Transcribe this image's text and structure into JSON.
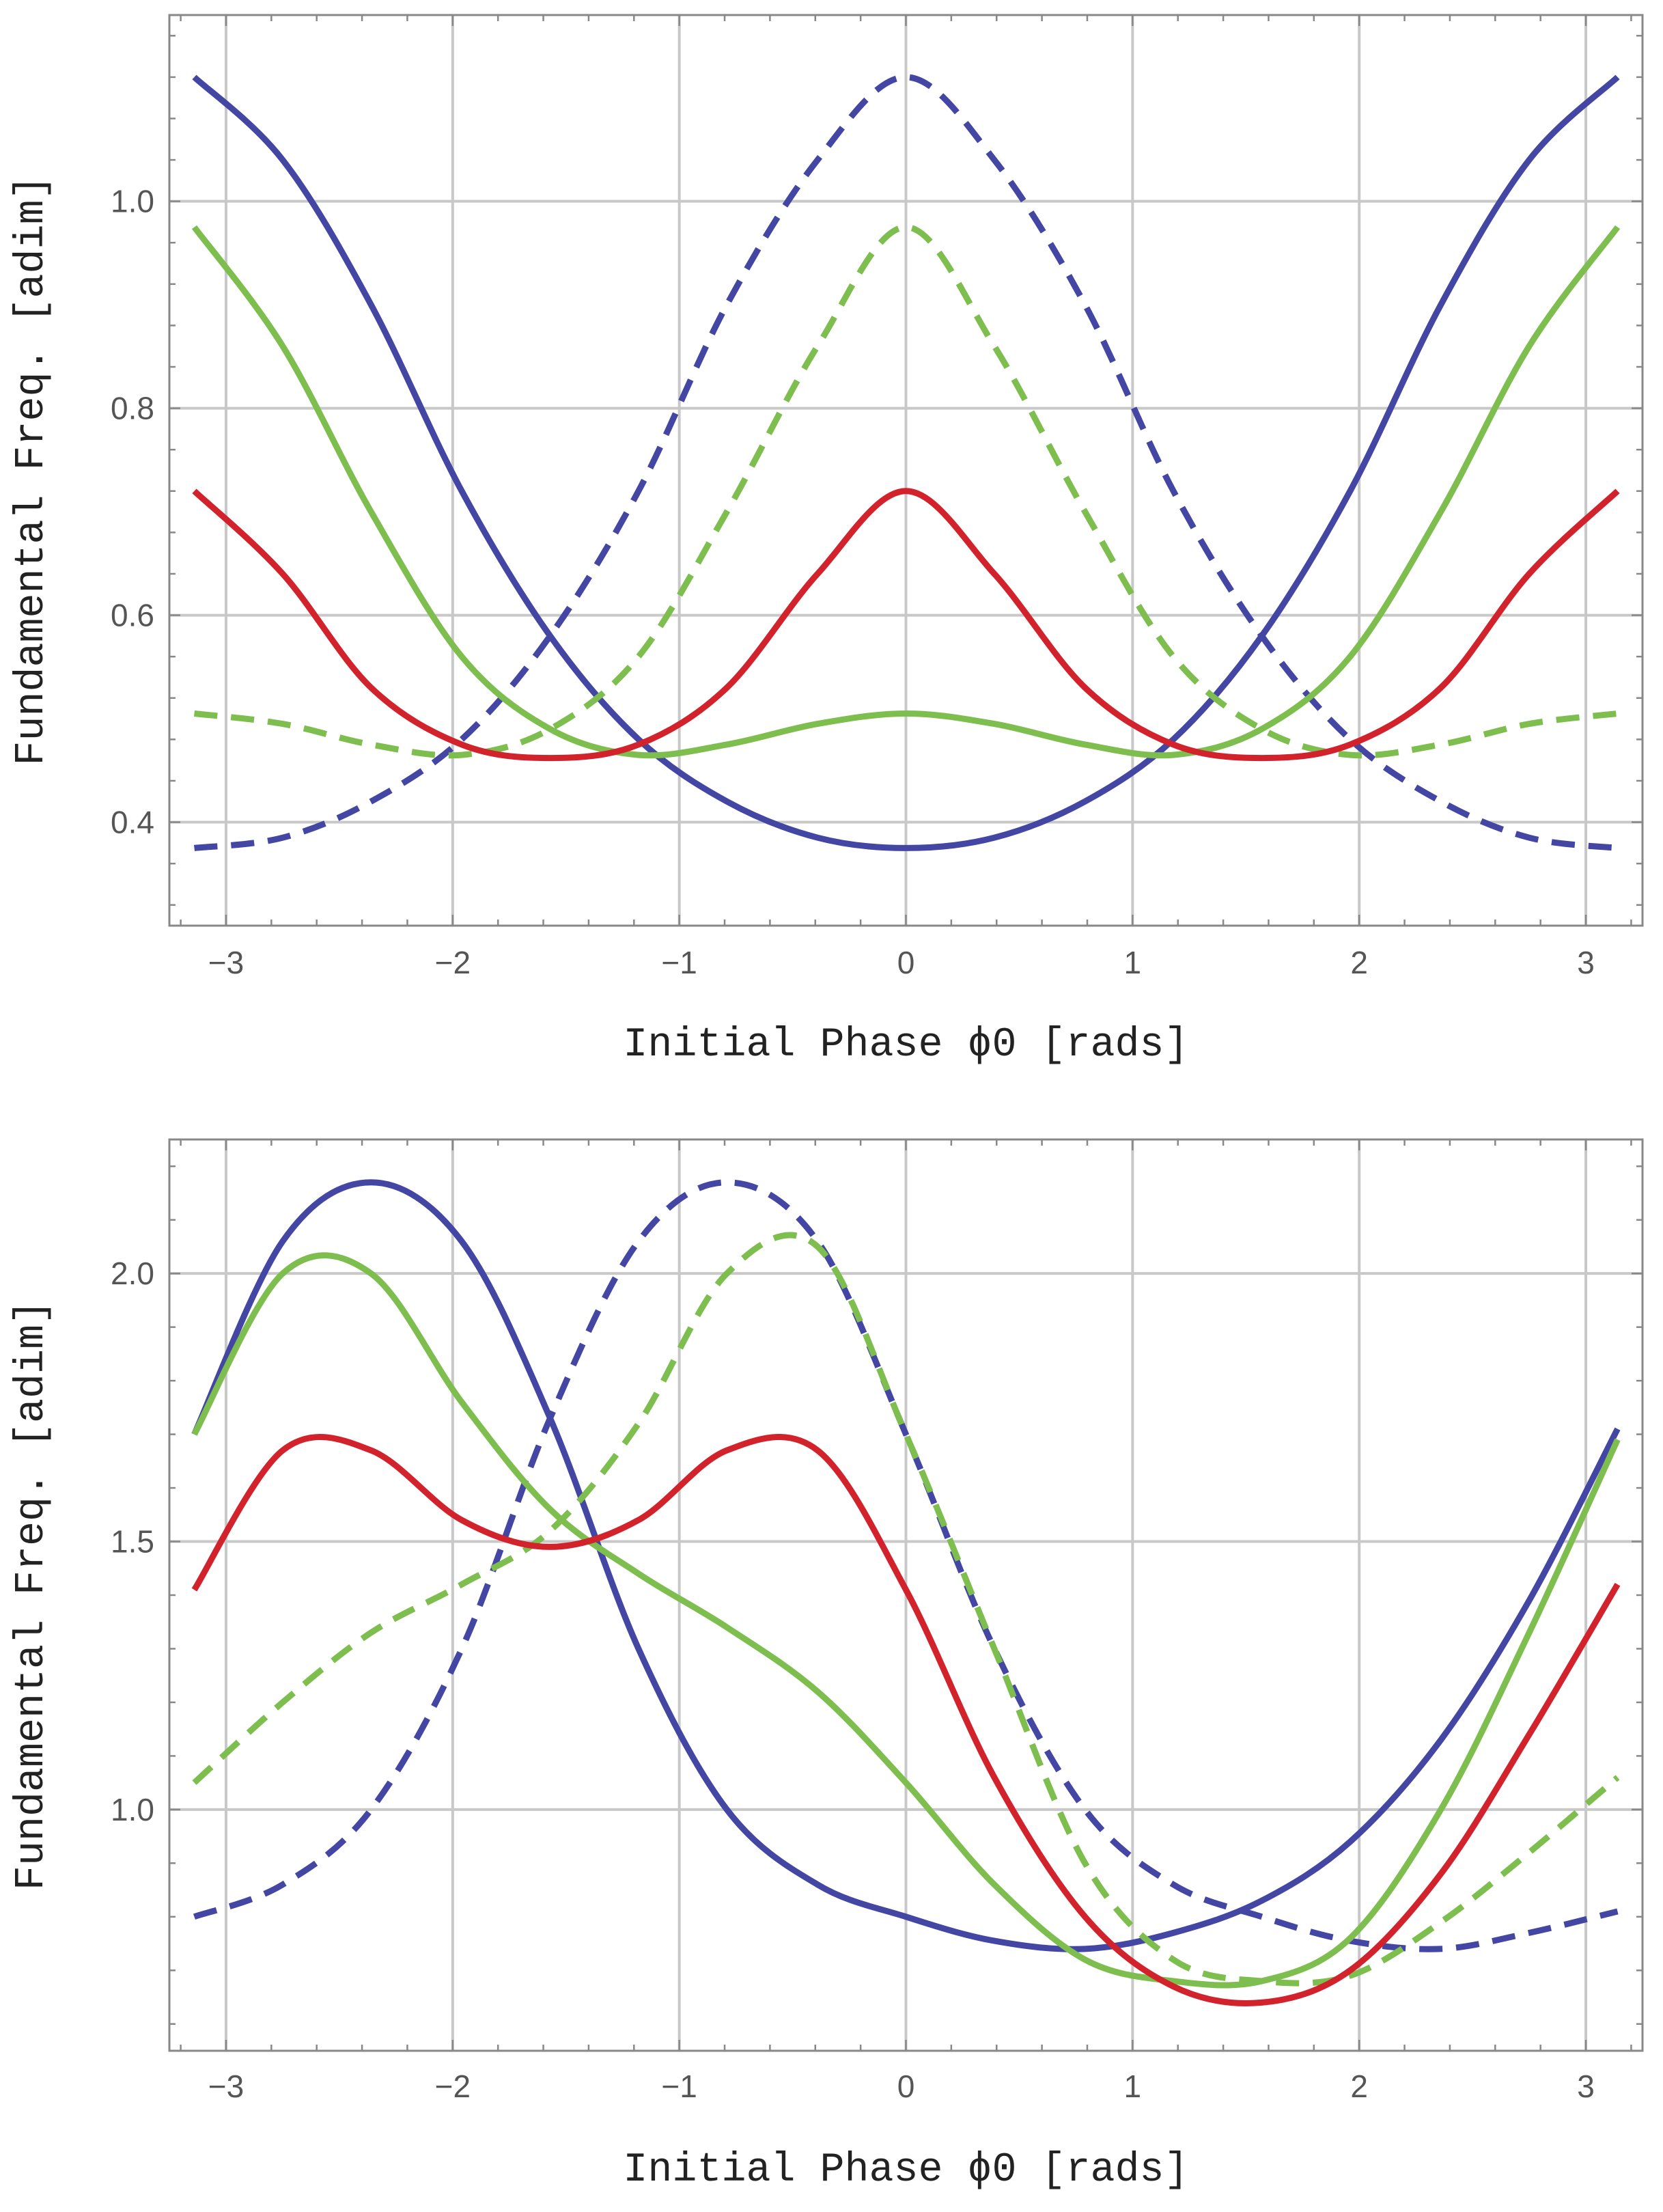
{
  "colors": {
    "blue": "#4346a2",
    "green": "#7dbe4f",
    "red": "#d2232d",
    "grid": "#c8c8c8",
    "frame": "#888888",
    "text": "#555555"
  },
  "chart_data": [
    {
      "type": "line",
      "xlabel": "Initial Phase ϕ0 [rads]",
      "ylabel": "Fundamental Freq. [adim]",
      "xlim": [
        -3.25,
        3.25
      ],
      "ylim": [
        0.3,
        1.18
      ],
      "xticks": [
        -3,
        -2,
        -1,
        0,
        1,
        2,
        3
      ],
      "xtick_labels": [
        "−3",
        "−2",
        "−1",
        "0",
        "1",
        "2",
        "3"
      ],
      "yticks": [
        0.4,
        0.6,
        0.8,
        1.0
      ],
      "ytick_labels": [
        "0.4",
        "0.6",
        "0.8",
        "1.0"
      ],
      "grid": true,
      "series": [
        {
          "color": "blue",
          "dash": false,
          "x": [
            -3.14,
            -2.75,
            -2.36,
            -1.96,
            -1.57,
            -1.18,
            -0.79,
            -0.39,
            0,
            0.39,
            0.79,
            1.18,
            1.57,
            1.96,
            2.36,
            2.75,
            3.14
          ],
          "values": [
            1.12,
            1.04,
            0.9,
            0.72,
            0.58,
            0.48,
            0.42,
            0.385,
            0.375,
            0.385,
            0.42,
            0.48,
            0.58,
            0.72,
            0.9,
            1.04,
            1.12
          ]
        },
        {
          "color": "blue",
          "dash": true,
          "x": [
            -3.14,
            -2.75,
            -2.36,
            -1.96,
            -1.57,
            -1.18,
            -0.79,
            -0.39,
            0,
            0.39,
            0.79,
            1.18,
            1.57,
            1.96,
            2.36,
            2.75,
            3.14
          ],
          "values": [
            0.375,
            0.385,
            0.42,
            0.48,
            0.58,
            0.72,
            0.9,
            1.04,
            1.12,
            1.04,
            0.9,
            0.72,
            0.58,
            0.48,
            0.42,
            0.385,
            0.375
          ]
        },
        {
          "color": "green",
          "dash": false,
          "x": [
            -3.14,
            -2.75,
            -2.36,
            -1.96,
            -1.57,
            -1.18,
            -0.79,
            -0.39,
            0,
            0.39,
            0.79,
            1.18,
            1.57,
            1.96,
            2.36,
            2.75,
            3.14
          ],
          "values": [
            0.975,
            0.86,
            0.7,
            0.56,
            0.49,
            0.465,
            0.475,
            0.495,
            0.505,
            0.495,
            0.475,
            0.465,
            0.49,
            0.56,
            0.7,
            0.86,
            0.975
          ]
        },
        {
          "color": "green",
          "dash": true,
          "x": [
            -3.14,
            -2.75,
            -2.36,
            -1.96,
            -1.57,
            -1.18,
            -0.79,
            -0.39,
            0,
            0.39,
            0.79,
            1.18,
            1.57,
            1.96,
            2.36,
            2.75,
            3.14
          ],
          "values": [
            0.505,
            0.495,
            0.475,
            0.465,
            0.49,
            0.56,
            0.7,
            0.86,
            0.975,
            0.86,
            0.7,
            0.56,
            0.49,
            0.465,
            0.475,
            0.495,
            0.505
          ]
        },
        {
          "color": "red",
          "dash": false,
          "x": [
            -3.14,
            -2.75,
            -2.36,
            -1.96,
            -1.57,
            -1.18,
            -0.79,
            -0.39,
            0,
            0.39,
            0.79,
            1.18,
            1.57,
            1.96,
            2.36,
            2.75,
            3.14
          ],
          "values": [
            0.72,
            0.64,
            0.53,
            0.475,
            0.462,
            0.475,
            0.53,
            0.64,
            0.72,
            0.64,
            0.53,
            0.475,
            0.462,
            0.475,
            0.53,
            0.64,
            0.72
          ]
        }
      ]
    },
    {
      "type": "line",
      "xlabel": "Initial Phase ϕ0 [rads]",
      "ylabel": "Fundamental Freq. [adim]",
      "xlim": [
        -3.25,
        3.25
      ],
      "ylim": [
        0.55,
        2.25
      ],
      "xticks": [
        -3,
        -2,
        -1,
        0,
        1,
        2,
        3
      ],
      "xtick_labels": [
        "−3",
        "−2",
        "−1",
        "0",
        "1",
        "2",
        "3"
      ],
      "yticks": [
        1.0,
        1.5,
        2.0
      ],
      "ytick_labels": [
        "1.0",
        "1.5",
        "2.0"
      ],
      "grid": true,
      "series": [
        {
          "color": "blue",
          "dash": false,
          "x": [
            -3.14,
            -2.75,
            -2.36,
            -1.96,
            -1.57,
            -1.18,
            -0.79,
            -0.39,
            0,
            0.39,
            0.79,
            1.18,
            1.57,
            1.96,
            2.36,
            2.75,
            3.14
          ],
          "values": [
            1.7,
            2.06,
            2.17,
            2.06,
            1.73,
            1.3,
            1.0,
            0.86,
            0.8,
            0.755,
            0.74,
            0.77,
            0.83,
            0.94,
            1.13,
            1.39,
            1.71
          ]
        },
        {
          "color": "blue",
          "dash": true,
          "x": [
            -3.14,
            -2.75,
            -2.36,
            -1.96,
            -1.57,
            -1.18,
            -0.79,
            -0.39,
            0,
            0.39,
            0.79,
            1.18,
            1.57,
            1.96,
            2.36,
            2.75,
            3.14
          ],
          "values": [
            0.8,
            0.86,
            1.0,
            1.3,
            1.73,
            2.06,
            2.17,
            2.06,
            1.7,
            1.3,
            1.0,
            0.86,
            0.8,
            0.755,
            0.74,
            0.77,
            0.81
          ]
        },
        {
          "color": "green",
          "dash": false,
          "x": [
            -3.14,
            -2.75,
            -2.36,
            -1.96,
            -1.57,
            -1.18,
            -0.79,
            -0.39,
            0,
            0.39,
            0.79,
            1.18,
            1.57,
            1.96,
            2.36,
            2.75,
            3.14
          ],
          "values": [
            1.7,
            2.0,
            2.0,
            1.76,
            1.56,
            1.44,
            1.34,
            1.22,
            1.05,
            0.86,
            0.72,
            0.68,
            0.68,
            0.76,
            1.0,
            1.33,
            1.69
          ]
        },
        {
          "color": "green",
          "dash": true,
          "x": [
            -3.14,
            -2.75,
            -2.36,
            -1.96,
            -1.57,
            -1.18,
            -0.79,
            -0.39,
            0,
            0.39,
            0.79,
            1.18,
            1.57,
            1.96,
            2.36,
            2.75,
            3.14
          ],
          "values": [
            1.05,
            1.2,
            1.33,
            1.42,
            1.52,
            1.72,
            2.0,
            2.05,
            1.7,
            1.3,
            0.9,
            0.72,
            0.68,
            0.69,
            0.79,
            0.92,
            1.06
          ]
        },
        {
          "color": "red",
          "dash": false,
          "x": [
            -3.14,
            -2.75,
            -2.36,
            -1.96,
            -1.57,
            -1.18,
            -0.79,
            -0.39,
            0,
            0.39,
            0.79,
            1.18,
            1.57,
            1.96,
            2.36,
            2.75,
            3.14
          ],
          "values": [
            1.41,
            1.67,
            1.67,
            1.54,
            1.49,
            1.54,
            1.67,
            1.67,
            1.41,
            1.06,
            0.8,
            0.67,
            0.64,
            0.7,
            0.88,
            1.14,
            1.42
          ]
        }
      ]
    }
  ]
}
